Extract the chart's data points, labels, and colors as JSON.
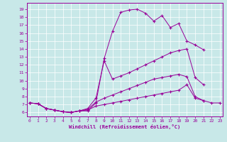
{
  "background_color": "#c8e8e8",
  "line_color": "#990099",
  "grid_color": "#ffffff",
  "xlabel": "Windchill (Refroidissement éolien,°C)",
  "yticks": [
    6,
    7,
    8,
    9,
    10,
    11,
    12,
    13,
    14,
    15,
    16,
    17,
    18,
    19
  ],
  "xticks": [
    0,
    1,
    2,
    3,
    4,
    5,
    6,
    7,
    8,
    9,
    10,
    11,
    12,
    13,
    14,
    15,
    16,
    17,
    18,
    19,
    20,
    21,
    22,
    23
  ],
  "xlim": [
    -0.3,
    23.3
  ],
  "ylim": [
    5.5,
    19.8
  ],
  "curves": [
    {
      "x": [
        0,
        1,
        2,
        3,
        4,
        5,
        6,
        7,
        8,
        9,
        10,
        11,
        12,
        13,
        14,
        15,
        16,
        17,
        18,
        19,
        20,
        21
      ],
      "y": [
        7.2,
        7.1,
        6.5,
        6.3,
        6.1,
        6.0,
        6.2,
        6.2,
        7.2,
        12.8,
        16.2,
        18.6,
        18.9,
        19.0,
        18.5,
        17.5,
        18.2,
        16.7,
        17.2,
        15.0,
        14.5,
        13.9
      ]
    },
    {
      "x": [
        0,
        1,
        2,
        3,
        4,
        5,
        6,
        7,
        8,
        9,
        10,
        11,
        12,
        13,
        14,
        15,
        16,
        17,
        18,
        19,
        20,
        21,
        22,
        23
      ],
      "y": [
        7.2,
        7.1,
        6.5,
        6.3,
        6.1,
        6.0,
        6.2,
        6.5,
        7.8,
        12.5,
        10.2,
        10.6,
        11.0,
        11.5,
        12.0,
        12.5,
        13.0,
        13.5,
        13.8,
        14.0,
        10.4,
        9.5,
        null,
        null
      ]
    },
    {
      "x": [
        0,
        1,
        2,
        3,
        4,
        5,
        6,
        7,
        8,
        9,
        10,
        11,
        12,
        13,
        14,
        15,
        16,
        17,
        18,
        19,
        20,
        21,
        22,
        23
      ],
      "y": [
        7.2,
        7.1,
        6.5,
        6.3,
        6.1,
        6.0,
        6.2,
        6.4,
        7.3,
        7.8,
        8.2,
        8.6,
        9.0,
        9.4,
        9.8,
        10.2,
        10.4,
        10.6,
        10.8,
        10.5,
        8.0,
        7.5,
        null,
        null
      ]
    },
    {
      "x": [
        0,
        1,
        2,
        3,
        4,
        5,
        6,
        7,
        8,
        9,
        10,
        11,
        12,
        13,
        14,
        15,
        16,
        17,
        18,
        19,
        20,
        21,
        22,
        23
      ],
      "y": [
        7.2,
        7.1,
        6.5,
        6.3,
        6.1,
        6.0,
        6.2,
        6.3,
        6.8,
        7.0,
        7.2,
        7.4,
        7.6,
        7.8,
        8.0,
        8.2,
        8.4,
        8.6,
        8.8,
        9.5,
        7.8,
        7.5,
        7.2,
        7.2
      ]
    }
  ]
}
